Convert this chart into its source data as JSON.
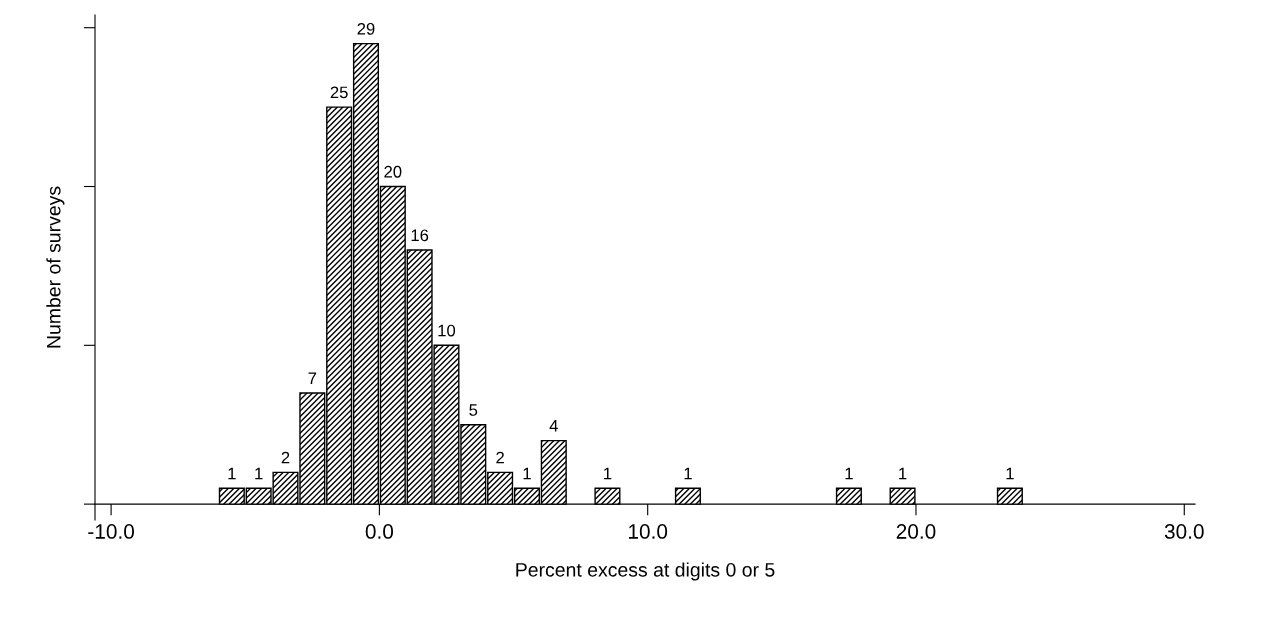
{
  "chart_data": {
    "type": "bar",
    "xlabel": "Percent excess at digits 0 or 5",
    "ylabel": "Number of surveys",
    "x": [
      -5.5,
      -4.5,
      -3.5,
      -2.5,
      -1.5,
      -0.5,
      0.5,
      1.5,
      2.5,
      3.5,
      4.5,
      5.5,
      6.5,
      8.5,
      11.5,
      17.5,
      19.5,
      23.5
    ],
    "values": [
      1,
      1,
      2,
      7,
      25,
      29,
      20,
      16,
      10,
      5,
      2,
      1,
      4,
      1,
      1,
      1,
      1,
      1
    ],
    "data_labels": true,
    "color": "#000000",
    "xlim": [
      -10.6,
      30.4
    ],
    "xticks": [
      {
        "value": -10,
        "label": "-10.0"
      },
      {
        "value": 0,
        "label": "0.0"
      },
      {
        "value": 10,
        "label": "10.0"
      },
      {
        "value": 20,
        "label": "20.0"
      },
      {
        "value": 30,
        "label": "30.0"
      }
    ],
    "ylim": [
      -1,
      30.8
    ],
    "yticks": [
      {
        "value": 0,
        "label": null
      },
      {
        "value": 10,
        "label": null
      },
      {
        "value": 20,
        "label": null
      },
      {
        "value": 30,
        "label": null
      }
    ],
    "tick_labels": "x"
  }
}
